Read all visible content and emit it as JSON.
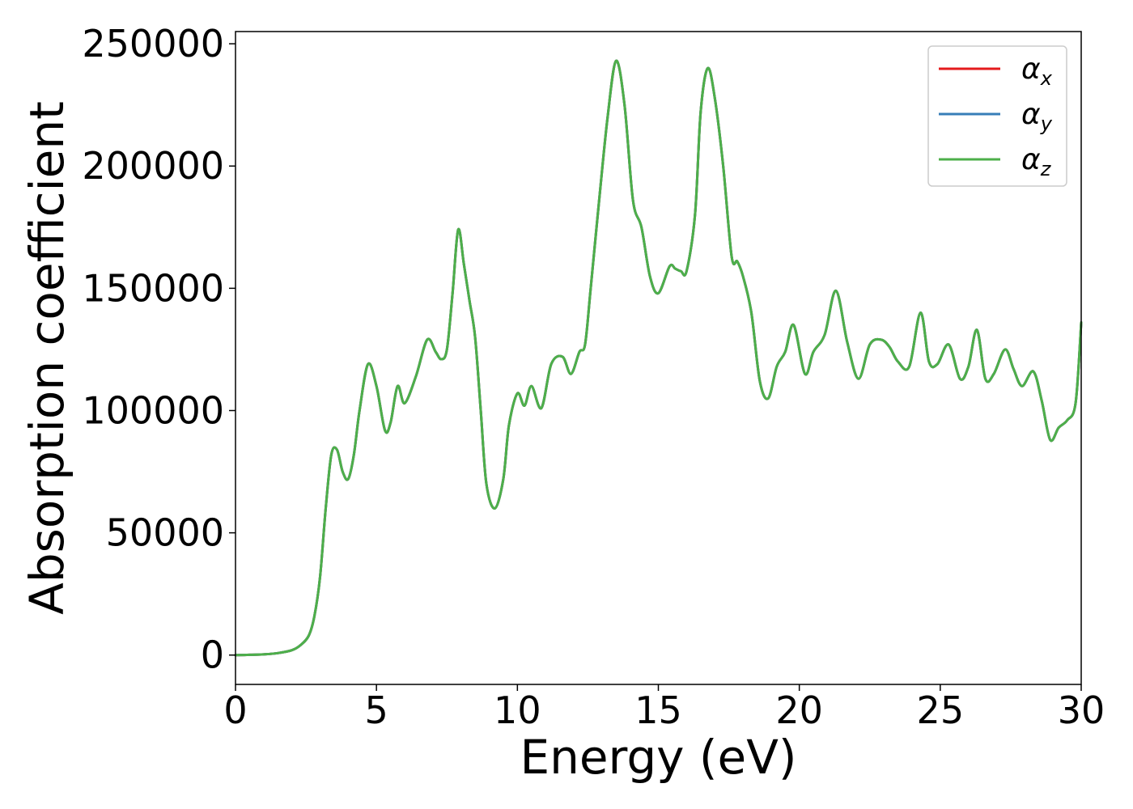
{
  "chart_data": {
    "type": "line",
    "title": "",
    "xlabel": "Energy (eV)",
    "ylabel": "Absorption coefficient",
    "xlim": [
      0,
      30
    ],
    "ylim": [
      -12000,
      255000
    ],
    "x_ticks": [
      "0",
      "5",
      "10",
      "15",
      "20",
      "25",
      "30"
    ],
    "y_ticks": [
      "0",
      "50000",
      "100000",
      "150000",
      "200000",
      "250000"
    ],
    "grid": false,
    "legend_position": "top-right",
    "series": [
      {
        "name": "αx",
        "symbol": "α",
        "subscript": "x",
        "color": "#e41a1c",
        "x": [
          0,
          0.5,
          1.0,
          1.5,
          2.0,
          2.3,
          2.6,
          2.8,
          3.0,
          3.2,
          3.4,
          3.6,
          3.8,
          4.0,
          4.2,
          4.4,
          4.7,
          5.0,
          5.3,
          5.5,
          5.75,
          6.0,
          6.4,
          6.8,
          7.1,
          7.3,
          7.5,
          7.7,
          7.9,
          8.1,
          8.3,
          8.5,
          8.7,
          8.9,
          9.2,
          9.5,
          9.7,
          10.0,
          10.25,
          10.5,
          10.85,
          11.2,
          11.6,
          11.9,
          12.2,
          12.4,
          12.6,
          12.9,
          13.2,
          13.5,
          13.8,
          14.1,
          14.4,
          14.7,
          15.0,
          15.4,
          15.6,
          15.8,
          16.0,
          16.3,
          16.5,
          16.75,
          17.0,
          17.3,
          17.6,
          17.8,
          18.0,
          18.3,
          18.6,
          18.9,
          19.2,
          19.5,
          19.8,
          20.2,
          20.5,
          20.9,
          21.3,
          21.7,
          22.1,
          22.5,
          22.9,
          23.2,
          23.5,
          23.9,
          24.3,
          24.6,
          24.9,
          25.3,
          25.7,
          26.0,
          26.3,
          26.6,
          26.9,
          27.3,
          27.6,
          27.9,
          28.3,
          28.6,
          28.9,
          29.2,
          29.5,
          29.8,
          30.0
        ],
        "y": [
          0,
          100,
          300,
          800,
          2000,
          4000,
          8000,
          16000,
          32000,
          60000,
          82000,
          84000,
          75000,
          72000,
          82000,
          100000,
          119000,
          110000,
          92000,
          95000,
          110000,
          103000,
          114000,
          129000,
          124000,
          121000,
          125000,
          148000,
          174000,
          160000,
          145000,
          130000,
          100000,
          70000,
          60000,
          72000,
          94000,
          107000,
          102000,
          110000,
          101000,
          119000,
          122000,
          115000,
          124000,
          127000,
          150000,
          186000,
          220000,
          243000,
          225000,
          186000,
          175000,
          155000,
          148000,
          159000,
          158000,
          157000,
          157000,
          180000,
          222000,
          240000,
          228000,
          200000,
          163000,
          161000,
          155000,
          140000,
          112000,
          105000,
          118000,
          124000,
          135000,
          115000,
          124000,
          131000,
          149000,
          128000,
          113000,
          127000,
          129000,
          126000,
          120000,
          118000,
          140000,
          120000,
          119000,
          127000,
          113000,
          118000,
          133000,
          113000,
          115000,
          125000,
          117000,
          110000,
          116000,
          104000,
          88000,
          93000,
          96000,
          103000,
          136000
        ]
      },
      {
        "name": "αy",
        "symbol": "α",
        "subscript": "y",
        "color": "#377eb8",
        "x": [
          0,
          0.5,
          1.0,
          1.5,
          2.0,
          2.3,
          2.6,
          2.8,
          3.0,
          3.2,
          3.4,
          3.6,
          3.8,
          4.0,
          4.2,
          4.4,
          4.7,
          5.0,
          5.3,
          5.5,
          5.75,
          6.0,
          6.4,
          6.8,
          7.1,
          7.3,
          7.5,
          7.7,
          7.9,
          8.1,
          8.3,
          8.5,
          8.7,
          8.9,
          9.2,
          9.5,
          9.7,
          10.0,
          10.25,
          10.5,
          10.85,
          11.2,
          11.6,
          11.9,
          12.2,
          12.4,
          12.6,
          12.9,
          13.2,
          13.5,
          13.8,
          14.1,
          14.4,
          14.7,
          15.0,
          15.4,
          15.6,
          15.8,
          16.0,
          16.3,
          16.5,
          16.75,
          17.0,
          17.3,
          17.6,
          17.8,
          18.0,
          18.3,
          18.6,
          18.9,
          19.2,
          19.5,
          19.8,
          20.2,
          20.5,
          20.9,
          21.3,
          21.7,
          22.1,
          22.5,
          22.9,
          23.2,
          23.5,
          23.9,
          24.3,
          24.6,
          24.9,
          25.3,
          25.7,
          26.0,
          26.3,
          26.6,
          26.9,
          27.3,
          27.6,
          27.9,
          28.3,
          28.6,
          28.9,
          29.2,
          29.5,
          29.8,
          30.0
        ],
        "y": [
          0,
          100,
          300,
          800,
          2000,
          4000,
          8000,
          16000,
          32000,
          60000,
          82000,
          84000,
          75000,
          72000,
          82000,
          100000,
          119000,
          110000,
          92000,
          95000,
          110000,
          103000,
          114000,
          129000,
          124000,
          121000,
          125000,
          148000,
          174000,
          160000,
          145000,
          130000,
          100000,
          70000,
          60000,
          72000,
          94000,
          107000,
          102000,
          110000,
          101000,
          119000,
          122000,
          115000,
          124000,
          127000,
          150000,
          186000,
          220000,
          243000,
          225000,
          186000,
          175000,
          155000,
          148000,
          159000,
          158000,
          157000,
          157000,
          180000,
          222000,
          240000,
          228000,
          200000,
          163000,
          161000,
          155000,
          140000,
          112000,
          105000,
          118000,
          124000,
          135000,
          115000,
          124000,
          131000,
          149000,
          128000,
          113000,
          127000,
          129000,
          126000,
          120000,
          118000,
          140000,
          120000,
          119000,
          127000,
          113000,
          118000,
          133000,
          113000,
          115000,
          125000,
          117000,
          110000,
          116000,
          104000,
          88000,
          93000,
          96000,
          103000,
          136000
        ]
      },
      {
        "name": "αz",
        "symbol": "α",
        "subscript": "z",
        "color": "#4daf4a",
        "x": [
          0,
          0.5,
          1.0,
          1.5,
          2.0,
          2.3,
          2.6,
          2.8,
          3.0,
          3.2,
          3.4,
          3.6,
          3.8,
          4.0,
          4.2,
          4.4,
          4.7,
          5.0,
          5.3,
          5.5,
          5.75,
          6.0,
          6.4,
          6.8,
          7.1,
          7.3,
          7.5,
          7.7,
          7.9,
          8.1,
          8.3,
          8.5,
          8.7,
          8.9,
          9.2,
          9.5,
          9.7,
          10.0,
          10.25,
          10.5,
          10.85,
          11.2,
          11.6,
          11.9,
          12.2,
          12.4,
          12.6,
          12.9,
          13.2,
          13.5,
          13.8,
          14.1,
          14.4,
          14.7,
          15.0,
          15.4,
          15.6,
          15.8,
          16.0,
          16.3,
          16.5,
          16.75,
          17.0,
          17.3,
          17.6,
          17.8,
          18.0,
          18.3,
          18.6,
          18.9,
          19.2,
          19.5,
          19.8,
          20.2,
          20.5,
          20.9,
          21.3,
          21.7,
          22.1,
          22.5,
          22.9,
          23.2,
          23.5,
          23.9,
          24.3,
          24.6,
          24.9,
          25.3,
          25.7,
          26.0,
          26.3,
          26.6,
          26.9,
          27.3,
          27.6,
          27.9,
          28.3,
          28.6,
          28.9,
          29.2,
          29.5,
          29.8,
          30.0
        ],
        "y": [
          0,
          100,
          300,
          800,
          2000,
          4000,
          8000,
          16000,
          32000,
          60000,
          82000,
          84000,
          75000,
          72000,
          82000,
          100000,
          119000,
          110000,
          92000,
          95000,
          110000,
          103000,
          114000,
          129000,
          124000,
          121000,
          125000,
          148000,
          174000,
          160000,
          145000,
          130000,
          100000,
          70000,
          60000,
          72000,
          94000,
          107000,
          102000,
          110000,
          101000,
          119000,
          122000,
          115000,
          124000,
          127000,
          150000,
          186000,
          220000,
          243000,
          225000,
          186000,
          175000,
          155000,
          148000,
          159000,
          158000,
          157000,
          157000,
          180000,
          222000,
          240000,
          228000,
          200000,
          163000,
          161000,
          155000,
          140000,
          112000,
          105000,
          118000,
          124000,
          135000,
          115000,
          124000,
          131000,
          149000,
          128000,
          113000,
          127000,
          129000,
          126000,
          120000,
          118000,
          140000,
          120000,
          119000,
          127000,
          113000,
          118000,
          133000,
          113000,
          115000,
          125000,
          117000,
          110000,
          116000,
          104000,
          88000,
          93000,
          96000,
          103000,
          136000
        ]
      }
    ]
  }
}
